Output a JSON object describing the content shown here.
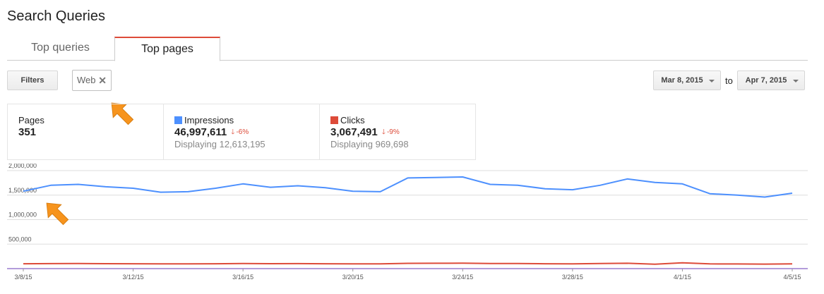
{
  "page_title": "Search Queries",
  "tabs": [
    {
      "label": "Top queries",
      "active": false
    },
    {
      "label": "Top pages",
      "active": true
    }
  ],
  "toolbar": {
    "filters_label": "Filters",
    "chip_label": "Web",
    "date_start": "Mar 8, 2015",
    "to_label": "to",
    "date_end": "Apr 7, 2015"
  },
  "stats": {
    "pages": {
      "label": "Pages",
      "value": "351"
    },
    "impressions": {
      "label": "Impressions",
      "value": "46,997,611",
      "change": "-6%",
      "sub": "Displaying 12,613,195",
      "color": "#4d90fe"
    },
    "clicks": {
      "label": "Clicks",
      "value": "3,067,491",
      "change": "-9%",
      "sub": "Displaying 969,698",
      "color": "#dd4b39"
    }
  },
  "colors": {
    "accent_tab": "#dd4b39",
    "annotation_arrow": "#f7941d",
    "axis_line": "#673ab7"
  },
  "chart_data": {
    "type": "line",
    "y_ticks": [
      "2,000,000",
      "1,500,000",
      "1,000,000",
      "500,000"
    ],
    "y_tick_values": [
      2000000,
      1500000,
      1000000,
      500000
    ],
    "ylim": [
      0,
      2000000
    ],
    "x_tick_labels": [
      "3/8/15",
      "3/12/15",
      "3/16/15",
      "3/20/15",
      "3/24/15",
      "3/28/15",
      "4/1/15",
      "4/5/15"
    ],
    "x_tick_indices": [
      0,
      4,
      8,
      12,
      16,
      20,
      24,
      28
    ],
    "x": [
      "3/8/15",
      "3/9/15",
      "3/10/15",
      "3/11/15",
      "3/12/15",
      "3/13/15",
      "3/14/15",
      "3/15/15",
      "3/16/15",
      "3/17/15",
      "3/18/15",
      "3/19/15",
      "3/20/15",
      "3/21/15",
      "3/22/15",
      "3/23/15",
      "3/24/15",
      "3/25/15",
      "3/26/15",
      "3/27/15",
      "3/28/15",
      "3/29/15",
      "3/30/15",
      "3/31/15",
      "4/1/15",
      "4/2/15",
      "4/3/15",
      "4/4/15",
      "4/5/15"
    ],
    "series": [
      {
        "color": "#4d90fe",
        "values": [
          1580000,
          1700000,
          1720000,
          1670000,
          1640000,
          1560000,
          1570000,
          1640000,
          1730000,
          1660000,
          1690000,
          1650000,
          1580000,
          1570000,
          1850000,
          1860000,
          1870000,
          1720000,
          1700000,
          1630000,
          1610000,
          1700000,
          1830000,
          1760000,
          1730000,
          1530000,
          1500000,
          1460000,
          1540000
        ]
      },
      {
        "color": "#dd4b39",
        "values": [
          100000,
          102000,
          103000,
          101000,
          99000,
          96000,
          97000,
          100000,
          103000,
          101000,
          102000,
          100000,
          98000,
          97000,
          108000,
          110000,
          111000,
          104000,
          103000,
          99000,
          98000,
          103000,
          110000,
          90000,
          118000,
          97000,
          95000,
          92000,
          97000
        ]
      }
    ]
  }
}
